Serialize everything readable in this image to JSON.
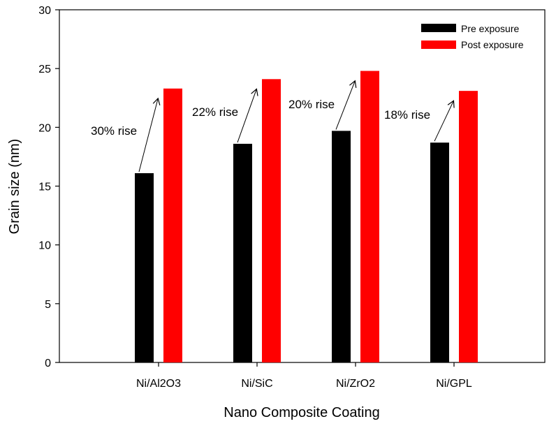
{
  "chart_data": {
    "type": "bar",
    "title": "",
    "xlabel": "Nano Composite Coating",
    "ylabel": "Grain size (nm)",
    "ylim": [
      0,
      30
    ],
    "yticks": [
      "0",
      "5",
      "10",
      "15",
      "20",
      "25",
      "30"
    ],
    "categories": [
      "Ni/Al2O3",
      "Ni/SiC",
      "Ni/ZrO2",
      "Ni/GPL"
    ],
    "series": [
      {
        "name": "Pre exposure",
        "color": "#000000",
        "values": [
          16.1,
          18.6,
          19.7,
          18.7
        ]
      },
      {
        "name": "Post exposure",
        "color": "#ff0000",
        "values": [
          23.3,
          24.1,
          24.8,
          23.1
        ]
      }
    ],
    "annotations": [
      "30% rise",
      "22% rise",
      "20% rise",
      "18% rise"
    ],
    "legend_position": "top-right",
    "grid": false
  }
}
